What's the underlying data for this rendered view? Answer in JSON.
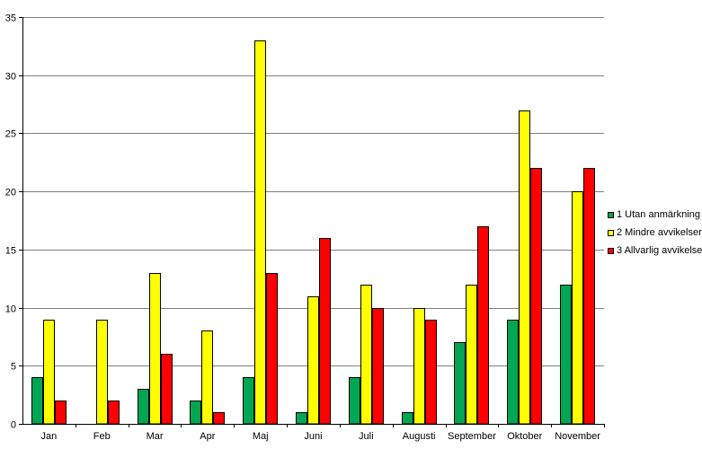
{
  "chart_data": {
    "type": "bar",
    "title": "",
    "xlabel": "",
    "ylabel": "",
    "categories": [
      "Jan",
      "Feb",
      "Mar",
      "Apr",
      "Maj",
      "Juni",
      "Juli",
      "Augusti",
      "September",
      "Oktober",
      "November"
    ],
    "series": [
      {
        "name": "1 Utan anmärkning",
        "color": "#00a651",
        "values": [
          4,
          0,
          3,
          2,
          4,
          1,
          4,
          1,
          7,
          9,
          12
        ]
      },
      {
        "name": "2 Mindre avvikelser",
        "color": "#ffff00",
        "values": [
          9,
          9,
          13,
          8,
          33,
          11,
          12,
          10,
          12,
          27,
          20
        ]
      },
      {
        "name": "3 Allvarlig avvikelse",
        "color": "#ff0000",
        "values": [
          2,
          2,
          6,
          1,
          13,
          16,
          10,
          9,
          17,
          22,
          22
        ]
      }
    ],
    "ylim": [
      0,
      35
    ],
    "yticks": [
      0,
      5,
      10,
      15,
      20,
      25,
      30,
      35
    ],
    "grid": true,
    "legend_position": "right"
  }
}
